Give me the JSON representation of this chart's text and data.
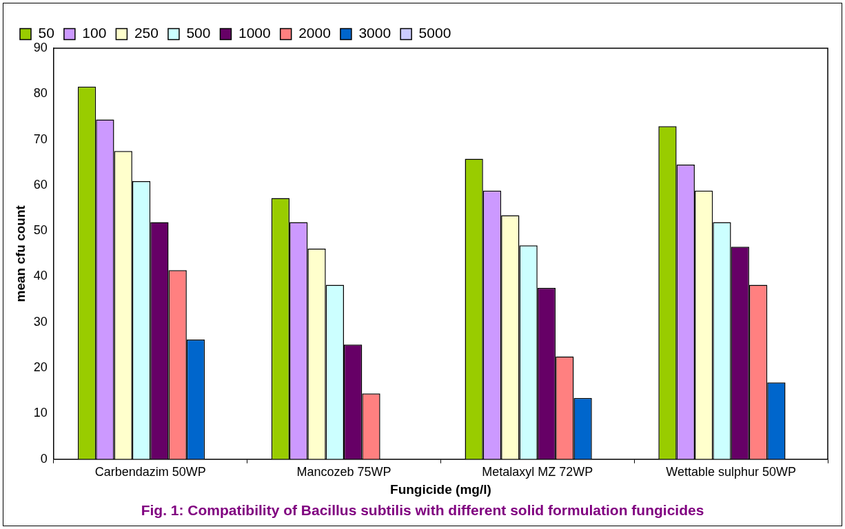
{
  "chart_data": {
    "type": "bar",
    "title": "Fig. 1: Compatibility of Bacillus subtilis with different solid formulation fungicides",
    "xlabel": "Fungicide (mg/l)",
    "ylabel": "mean cfu count",
    "categories": [
      "Carbendazim 50WP",
      "Mancozeb 75WP",
      "Metalaxyl MZ 72WP",
      "Wettable sulphur 50WP"
    ],
    "series": [
      {
        "name": "50",
        "color": "#99cc00",
        "values": [
          81.6,
          57.2,
          65.8,
          72.9
        ]
      },
      {
        "name": "100",
        "color": "#cc99ff",
        "values": [
          74.4,
          51.9,
          58.8,
          64.5
        ]
      },
      {
        "name": "250",
        "color": "#ffffcc",
        "values": [
          67.5,
          46.1,
          53.4,
          58.8
        ]
      },
      {
        "name": "500",
        "color": "#ccffff",
        "values": [
          60.9,
          38.2,
          46.8,
          51.9
        ]
      },
      {
        "name": "1000",
        "color": "#660066",
        "values": [
          51.9,
          25.1,
          37.5,
          46.5
        ]
      },
      {
        "name": "2000",
        "color": "#ff8080",
        "values": [
          41.4,
          14.4,
          22.5,
          38.2
        ]
      },
      {
        "name": "3000",
        "color": "#0066cc",
        "values": [
          26.2,
          0,
          13.4,
          16.8
        ]
      },
      {
        "name": "5000",
        "color": "#ccccff",
        "values": [
          0,
          0,
          0,
          0
        ]
      }
    ],
    "ylim": [
      0,
      90
    ],
    "yticks": [
      0,
      10,
      20,
      30,
      40,
      50,
      60,
      70,
      80,
      90
    ],
    "grid": false,
    "legend": "top left"
  }
}
